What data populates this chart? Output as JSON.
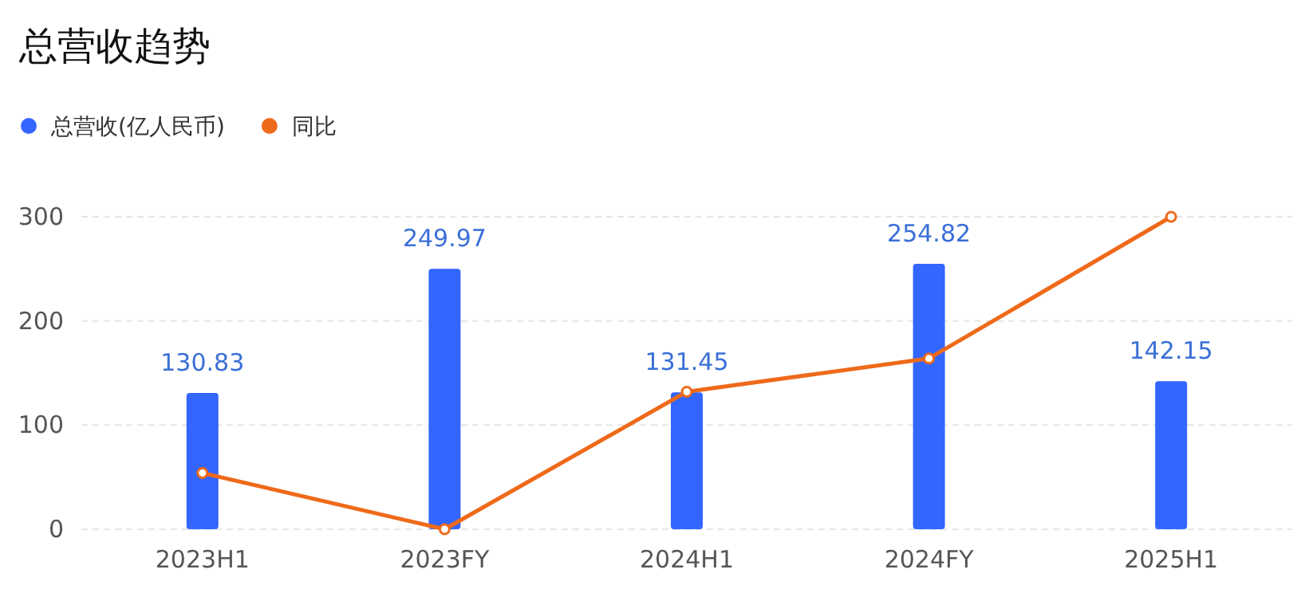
{
  "chart_data": {
    "type": "bar",
    "title": "总营收趋势",
    "categories": [
      "2023H1",
      "2023FY",
      "2024H1",
      "2024FY",
      "2025H1"
    ],
    "series": [
      {
        "name": "总营收(亿人民币)",
        "color": "#3366ff",
        "values": [
          130.83,
          249.97,
          131.45,
          254.82,
          142.15
        ],
        "value_labels": [
          "130.83",
          "249.97",
          "131.45",
          "254.82",
          "142.15"
        ]
      },
      {
        "name": "同比",
        "type": "line",
        "color": "#ee6a1a",
        "values": [
          54,
          0,
          132,
          164,
          300
        ],
        "marker": "circle"
      }
    ],
    "ylim": [
      0,
      300
    ],
    "yticks": [
      0,
      100,
      200,
      300
    ],
    "grid": "y",
    "legend": "top left"
  }
}
